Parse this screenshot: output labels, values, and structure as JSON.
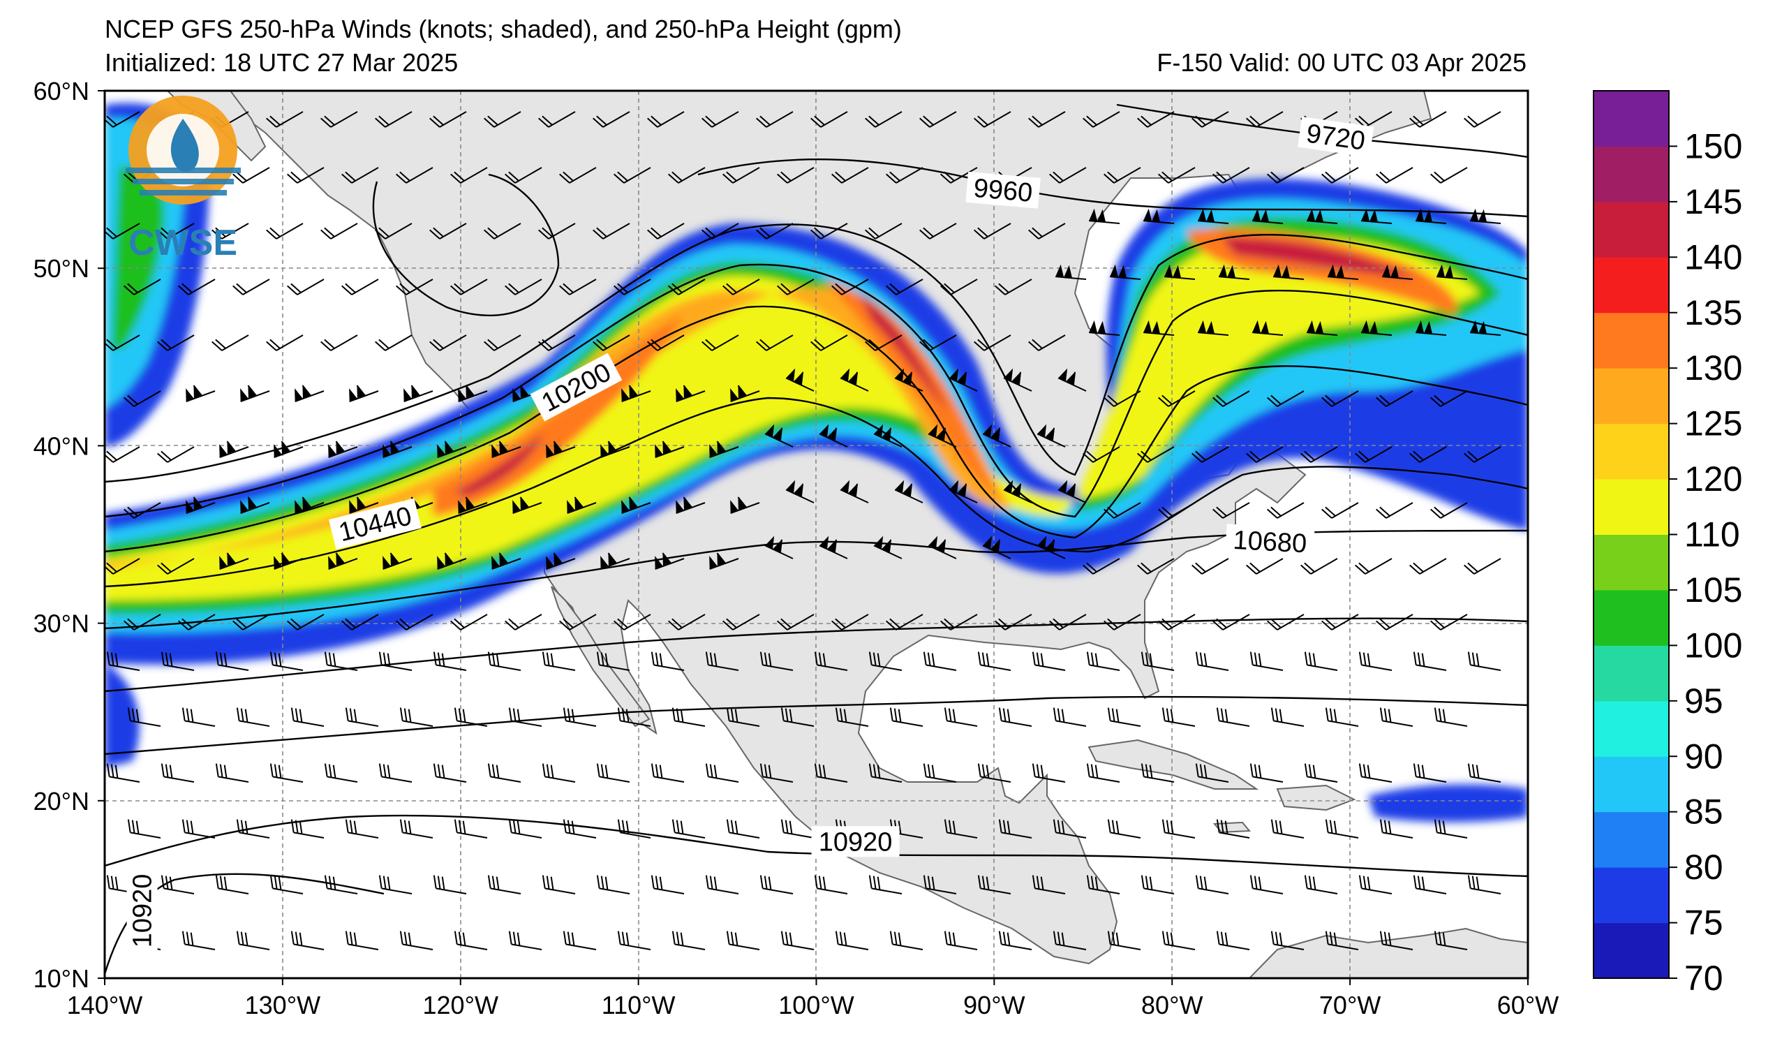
{
  "header": {
    "title": "NCEP GFS 250-hPa Winds (knots; shaded), and 250-hPa Height (gpm)",
    "initialized": "Initialized: 18 UTC 27 Mar 2025",
    "valid": "F-150  Valid: 00 UTC 03 Apr 2025"
  },
  "logo": {
    "text": "CWSE"
  },
  "map": {
    "extent": {
      "lon": [
        -140,
        -60
      ],
      "lat": [
        10,
        60
      ]
    },
    "lon_ticks": [
      {
        "value": -140,
        "label": "140°W"
      },
      {
        "value": -130,
        "label": "130°W"
      },
      {
        "value": -120,
        "label": "120°W"
      },
      {
        "value": -110,
        "label": "110°W"
      },
      {
        "value": -100,
        "label": "100°W"
      },
      {
        "value": -90,
        "label": "90°W"
      },
      {
        "value": -80,
        "label": "80°W"
      },
      {
        "value": -70,
        "label": "70°W"
      },
      {
        "value": -60,
        "label": "60°W"
      }
    ],
    "lat_ticks": [
      {
        "value": 60,
        "label": "60°N"
      },
      {
        "value": 50,
        "label": "50°N"
      },
      {
        "value": 40,
        "label": "40°N"
      },
      {
        "value": 30,
        "label": "30°N"
      },
      {
        "value": 20,
        "label": "20°N"
      },
      {
        "value": 10,
        "label": "10°N"
      }
    ],
    "contour_labels": [
      {
        "text": "9720",
        "lon": -70.8,
        "lat": 57.4,
        "rotate": 8
      },
      {
        "text": "9960",
        "lon": -89.5,
        "lat": 54.4,
        "rotate": 5
      },
      {
        "text": "10200",
        "lon": -113.5,
        "lat": 43.3,
        "rotate": -28
      },
      {
        "text": "10440",
        "lon": -124.8,
        "lat": 35.6,
        "rotate": -14
      },
      {
        "text": "10680",
        "lon": -74.5,
        "lat": 34.6,
        "rotate": 3
      },
      {
        "text": "10920",
        "lon": -97.8,
        "lat": 17.7,
        "rotate": 0
      },
      {
        "text": "10920",
        "lon": -137.9,
        "lat": 13.8,
        "rotate": -90
      }
    ]
  },
  "colorbar": {
    "ticks": [
      "70",
      "75",
      "80",
      "85",
      "90",
      "95",
      "100",
      "105",
      "110",
      "120",
      "125",
      "130",
      "135",
      "140",
      "145",
      "150"
    ],
    "colors": [
      "#1a1ab8",
      "#1e3ce6",
      "#1f7ff5",
      "#22c7f7",
      "#20f0e0",
      "#25d9a0",
      "#1fbf1f",
      "#78d01a",
      "#f0f514",
      "#ffd21a",
      "#ffaa1e",
      "#ff7a1e",
      "#f51e1e",
      "#c81e3c",
      "#a01e64",
      "#781e96"
    ]
  },
  "legend_units": "knots"
}
